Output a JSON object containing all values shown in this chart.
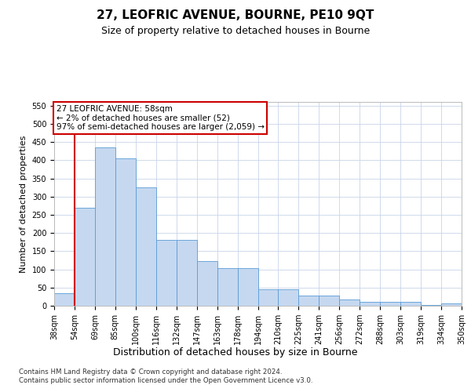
{
  "title1": "27, LEOFRIC AVENUE, BOURNE, PE10 9QT",
  "title2": "Size of property relative to detached houses in Bourne",
  "xlabel": "Distribution of detached houses by size in Bourne",
  "ylabel": "Number of detached properties",
  "footer1": "Contains HM Land Registry data © Crown copyright and database right 2024.",
  "footer2": "Contains public sector information licensed under the Open Government Licence v3.0.",
  "annotation_line1": "27 LEOFRIC AVENUE: 58sqm",
  "annotation_line2": "← 2% of detached houses are smaller (52)",
  "annotation_line3": "97% of semi-detached houses are larger (2,059) →",
  "bar_color": "#c5d8f0",
  "bar_edge_color": "#5b9bd5",
  "vline_color": "#cc0000",
  "vline_x_bin": 1,
  "bin_labels": [
    "38sqm",
    "54sqm",
    "69sqm",
    "85sqm",
    "100sqm",
    "116sqm",
    "132sqm",
    "147sqm",
    "163sqm",
    "178sqm",
    "194sqm",
    "210sqm",
    "225sqm",
    "241sqm",
    "256sqm",
    "272sqm",
    "288sqm",
    "303sqm",
    "319sqm",
    "334sqm",
    "350sqm"
  ],
  "bar_heights": [
    35,
    270,
    435,
    405,
    325,
    180,
    180,
    122,
    103,
    103,
    45,
    45,
    28,
    28,
    17,
    10,
    10,
    10,
    3,
    7
  ],
  "ylim": [
    0,
    560
  ],
  "yticks": [
    0,
    50,
    100,
    150,
    200,
    250,
    300,
    350,
    400,
    450,
    500,
    550
  ],
  "background_color": "#ffffff",
  "grid_color": "#c8d4e8",
  "annotation_fontsize": 7.5,
  "title1_fontsize": 11,
  "title2_fontsize": 9,
  "ylabel_fontsize": 8,
  "xlabel_fontsize": 9,
  "tick_fontsize": 7
}
